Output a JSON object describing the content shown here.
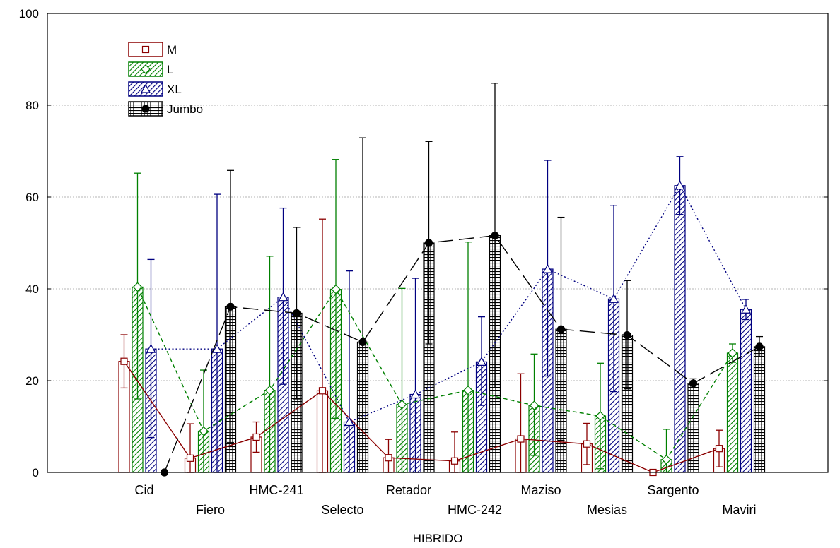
{
  "chart_data": {
    "type": "bar",
    "xlabel": "HIBRIDO",
    "ylabel": "",
    "ylim": [
      0,
      100
    ],
    "yticks": [
      0,
      20,
      40,
      60,
      80,
      100
    ],
    "grid": true,
    "legend_position": "top-left",
    "categories": [
      "Cid",
      "Fiero",
      "HMC-241",
      "Selecto",
      "Retador",
      "HMC-242",
      "Maziso",
      "Mesias",
      "Sargento",
      "Maviri"
    ],
    "series": [
      {
        "name": "M",
        "color": "#8b0000",
        "pattern": "none",
        "marker": "square",
        "line": "solid",
        "values": [
          24.2,
          3.1,
          7.7,
          17.8,
          3.2,
          2.5,
          7.3,
          6.2,
          0.0,
          5.2
        ],
        "error_high": [
          30.0,
          10.6,
          11.0,
          55.2,
          7.2,
          8.8,
          21.5,
          10.7,
          0.3,
          9.2
        ],
        "error_low": [
          18.4,
          0.0,
          4.4,
          0.0,
          0.0,
          0.0,
          0.0,
          1.7,
          0.0,
          1.2
        ]
      },
      {
        "name": "L",
        "color": "#008000",
        "pattern": "diagonal",
        "marker": "diamond",
        "line": "dashed",
        "values": [
          40.4,
          9.0,
          17.9,
          39.9,
          14.8,
          17.9,
          14.6,
          12.3,
          2.8,
          26.0
        ],
        "error_high": [
          65.2,
          22.3,
          47.1,
          68.2,
          40.1,
          50.2,
          25.8,
          23.8,
          9.4,
          28.0
        ],
        "error_low": [
          16.0,
          0.0,
          0.0,
          11.8,
          0.0,
          0.0,
          3.7,
          0.8,
          0.0,
          24.0
        ]
      },
      {
        "name": "XL",
        "color": "#000080",
        "pattern": "diagonal",
        "marker": "triangle",
        "line": "dotted",
        "values": [
          26.9,
          26.9,
          38.2,
          11.0,
          17.0,
          24.1,
          44.3,
          37.8,
          62.5,
          35.5
        ],
        "error_high": [
          46.4,
          60.6,
          57.6,
          43.9,
          42.3,
          33.9,
          68.0,
          58.2,
          68.8,
          37.7
        ],
        "error_low": [
          7.6,
          0.0,
          19.2,
          0.0,
          0.0,
          14.6,
          21.0,
          17.6,
          56.2,
          33.3
        ]
      },
      {
        "name": "Jumbo",
        "color": "#000000",
        "pattern": "grid",
        "marker": "circle",
        "line": "long-dash",
        "values": [
          0.0,
          36.1,
          34.7,
          28.4,
          50.0,
          51.6,
          31.2,
          29.9,
          19.4,
          27.4
        ],
        "error_high": [
          0.0,
          65.8,
          53.4,
          72.9,
          72.1,
          84.8,
          55.6,
          41.8,
          20.4,
          29.6
        ],
        "error_low": [
          0.0,
          6.5,
          16.0,
          0.0,
          28.0,
          18.5,
          7.0,
          18.2,
          18.4,
          25.3
        ]
      }
    ]
  }
}
